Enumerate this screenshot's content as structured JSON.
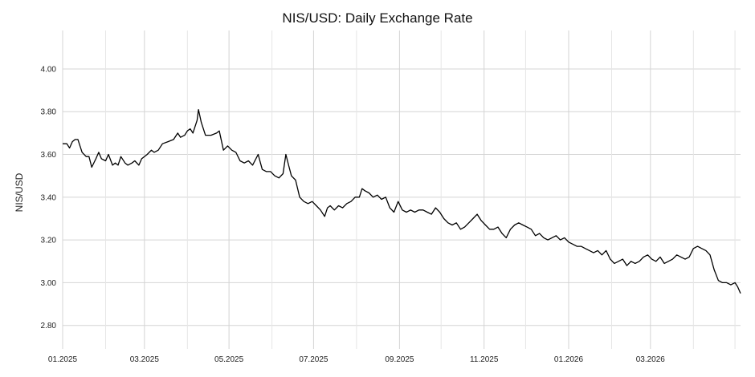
{
  "chart_data": {
    "type": "line",
    "title": "NIS/USD: Daily Exchange Rate",
    "xlabel": "",
    "ylabel": "NIS/USD",
    "x_ticks": [
      "01.2025",
      "03.2025",
      "05.2025",
      "07.2025",
      "09.2025",
      "11.2025",
      "01.2026",
      "03.2026"
    ],
    "y_ticks": [
      "2.80",
      "3.00",
      "3.20",
      "3.40",
      "3.60",
      "3.80",
      "4.00"
    ],
    "xlim": [
      "2025-01-01",
      "2026-05-05"
    ],
    "ylim": [
      2.69,
      4.18
    ],
    "grid": true,
    "series": [
      {
        "x": [
          "2025-01-01",
          "2025-01-04",
          "2025-01-06",
          "2025-01-08",
          "2025-01-10",
          "2025-01-12",
          "2025-01-15",
          "2025-01-18",
          "2025-01-20",
          "2025-01-22",
          "2025-01-25",
          "2025-01-27",
          "2025-01-29",
          "2025-02-01",
          "2025-02-03",
          "2025-02-06",
          "2025-02-08",
          "2025-02-10",
          "2025-02-12",
          "2025-02-15",
          "2025-02-17",
          "2025-02-20",
          "2025-02-22",
          "2025-02-25",
          "2025-02-27",
          "2025-03-01",
          "2025-03-03",
          "2025-03-06",
          "2025-03-08",
          "2025-03-11",
          "2025-03-14",
          "2025-03-18",
          "2025-03-22",
          "2025-03-25",
          "2025-03-27",
          "2025-03-30",
          "2025-04-01",
          "2025-04-03",
          "2025-04-05",
          "2025-04-07",
          "2025-04-08",
          "2025-04-09",
          "2025-04-11",
          "2025-04-14",
          "2025-04-18",
          "2025-04-22",
          "2025-04-24",
          "2025-04-27",
          "2025-04-30",
          "2025-05-03",
          "2025-05-06",
          "2025-05-09",
          "2025-05-12",
          "2025-05-15",
          "2025-05-18",
          "2025-05-22",
          "2025-05-25",
          "2025-05-28",
          "2025-05-31",
          "2025-06-03",
          "2025-06-06",
          "2025-06-09",
          "2025-06-11",
          "2025-06-13",
          "2025-06-15",
          "2025-06-18",
          "2025-06-21",
          "2025-06-24",
          "2025-06-27",
          "2025-06-30",
          "2025-07-03",
          "2025-07-06",
          "2025-07-09",
          "2025-07-11",
          "2025-07-13",
          "2025-07-16",
          "2025-07-19",
          "2025-07-22",
          "2025-07-25",
          "2025-07-28",
          "2025-07-31",
          "2025-08-03",
          "2025-08-05",
          "2025-08-07",
          "2025-08-10",
          "2025-08-13",
          "2025-08-16",
          "2025-08-19",
          "2025-08-22",
          "2025-08-25",
          "2025-08-28",
          "2025-08-31",
          "2025-09-03",
          "2025-09-06",
          "2025-09-09",
          "2025-09-12",
          "2025-09-15",
          "2025-09-18",
          "2025-09-21",
          "2025-09-24",
          "2025-09-27",
          "2025-09-30",
          "2025-10-03",
          "2025-10-06",
          "2025-10-09",
          "2025-10-12",
          "2025-10-15",
          "2025-10-18",
          "2025-10-21",
          "2025-10-24",
          "2025-10-27",
          "2025-10-30",
          "2025-11-02",
          "2025-11-05",
          "2025-11-08",
          "2025-11-11",
          "2025-11-14",
          "2025-11-17",
          "2025-11-20",
          "2025-11-23",
          "2025-11-26",
          "2025-11-29",
          "2025-12-02",
          "2025-12-05",
          "2025-12-08",
          "2025-12-11",
          "2025-12-14",
          "2025-12-17",
          "2025-12-20",
          "2025-12-23",
          "2025-12-26",
          "2025-12-29",
          "2026-01-01",
          "2026-01-04",
          "2026-01-07",
          "2026-01-10",
          "2026-01-13",
          "2026-01-16",
          "2026-01-19",
          "2026-01-22",
          "2026-01-25",
          "2026-01-28",
          "2026-01-31",
          "2026-02-03",
          "2026-02-06",
          "2026-02-09",
          "2026-02-12",
          "2026-02-15",
          "2026-02-18",
          "2026-02-21",
          "2026-02-24",
          "2026-02-27",
          "2026-03-02",
          "2026-03-05",
          "2026-03-08",
          "2026-03-11",
          "2026-03-14",
          "2026-03-17",
          "2026-03-20",
          "2026-03-23",
          "2026-03-26",
          "2026-03-29",
          "2026-04-01",
          "2026-04-04",
          "2026-04-07",
          "2026-04-10",
          "2026-04-13",
          "2026-04-16",
          "2026-04-19",
          "2026-04-22",
          "2026-04-25",
          "2026-04-28",
          "2026-05-01",
          "2026-05-03",
          "2026-05-05"
        ],
        "y": [
          3.65,
          3.65,
          3.63,
          3.66,
          3.67,
          3.67,
          3.61,
          3.59,
          3.59,
          3.54,
          3.58,
          3.61,
          3.58,
          3.57,
          3.6,
          3.55,
          3.56,
          3.55,
          3.59,
          3.56,
          3.55,
          3.56,
          3.57,
          3.55,
          3.58,
          3.59,
          3.6,
          3.62,
          3.61,
          3.62,
          3.65,
          3.66,
          3.67,
          3.7,
          3.68,
          3.69,
          3.71,
          3.72,
          3.7,
          3.74,
          3.76,
          3.81,
          3.75,
          3.69,
          3.69,
          3.7,
          3.71,
          3.62,
          3.64,
          3.62,
          3.61,
          3.57,
          3.56,
          3.57,
          3.55,
          3.6,
          3.53,
          3.52,
          3.52,
          3.5,
          3.49,
          3.51,
          3.6,
          3.55,
          3.5,
          3.48,
          3.4,
          3.38,
          3.37,
          3.38,
          3.36,
          3.34,
          3.31,
          3.35,
          3.36,
          3.34,
          3.36,
          3.35,
          3.37,
          3.38,
          3.4,
          3.4,
          3.44,
          3.43,
          3.42,
          3.4,
          3.41,
          3.39,
          3.4,
          3.35,
          3.33,
          3.38,
          3.34,
          3.33,
          3.34,
          3.33,
          3.34,
          3.34,
          3.33,
          3.32,
          3.35,
          3.33,
          3.3,
          3.28,
          3.27,
          3.28,
          3.25,
          3.26,
          3.28,
          3.3,
          3.32,
          3.29,
          3.27,
          3.25,
          3.25,
          3.26,
          3.23,
          3.21,
          3.25,
          3.27,
          3.28,
          3.27,
          3.26,
          3.25,
          3.22,
          3.23,
          3.21,
          3.2,
          3.21,
          3.22,
          3.2,
          3.21,
          3.19,
          3.18,
          3.17,
          3.17,
          3.16,
          3.15,
          3.14,
          3.15,
          3.13,
          3.15,
          3.11,
          3.09,
          3.1,
          3.11,
          3.08,
          3.1,
          3.09,
          3.1,
          3.12,
          3.13,
          3.11,
          3.1,
          3.12,
          3.09,
          3.1,
          3.11,
          3.13,
          3.12,
          3.11,
          3.12,
          3.16,
          3.17,
          3.16,
          3.15,
          3.13,
          3.06,
          3.01,
          3.0,
          3.0,
          2.99,
          3.0,
          2.98,
          2.95
        ]
      }
    ]
  }
}
